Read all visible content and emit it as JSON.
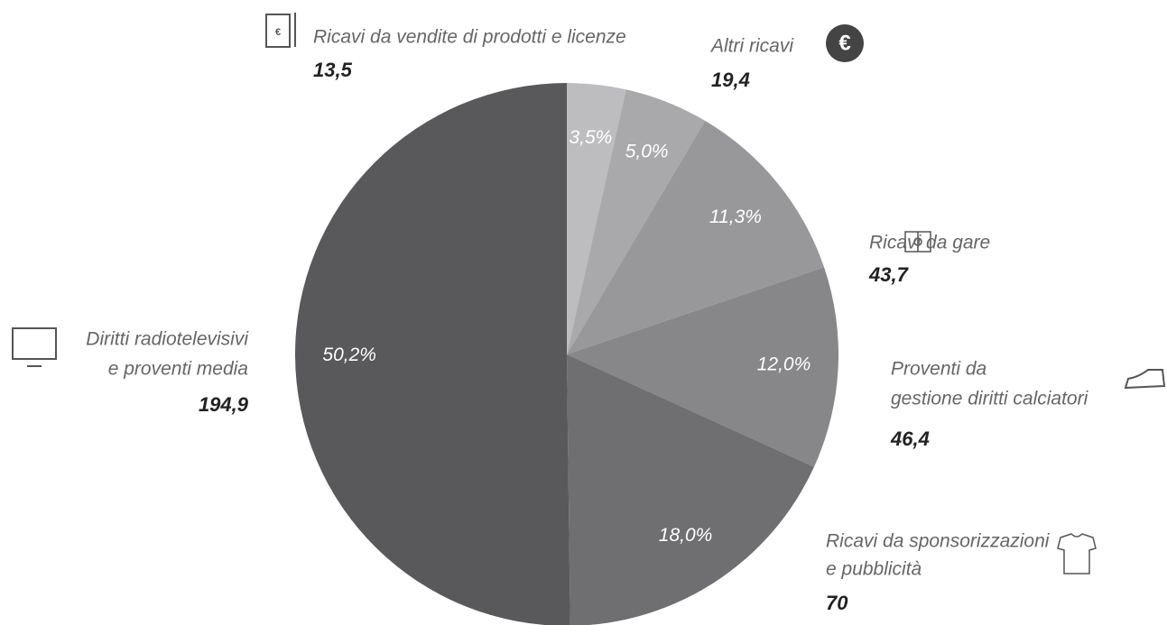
{
  "chart_data": {
    "type": "pie",
    "categories": [
      [
        "Ricavi da vendite di prodotti e licenze"
      ],
      [
        "Altri ricavi"
      ],
      [
        "Ricavi da gare"
      ],
      [
        "Proventi da",
        "gestione diritti calciatori"
      ],
      [
        "Ricavi da sponsorizzazioni",
        "e pubblicità"
      ],
      [
        "Diritti radiotelevisivi",
        "e proventi media"
      ]
    ],
    "values": [
      3.5,
      5.0,
      11.3,
      12.0,
      18.0,
      50.2
    ],
    "value_labels": [
      "3,5%",
      "5,0%",
      "11,3%",
      "12,0%",
      "18,0%",
      "50,2%"
    ],
    "amounts": [
      13.5,
      19.4,
      43.7,
      46.4,
      70,
      194.9
    ],
    "amount_labels": [
      "13,5",
      "19,4",
      "43,7",
      "46,4",
      "70",
      "194,9"
    ],
    "colors": [
      "#bdbdbf",
      "#a9a9ab",
      "#98989a",
      "#878789",
      "#6f6f71",
      "#59595b"
    ]
  }
}
